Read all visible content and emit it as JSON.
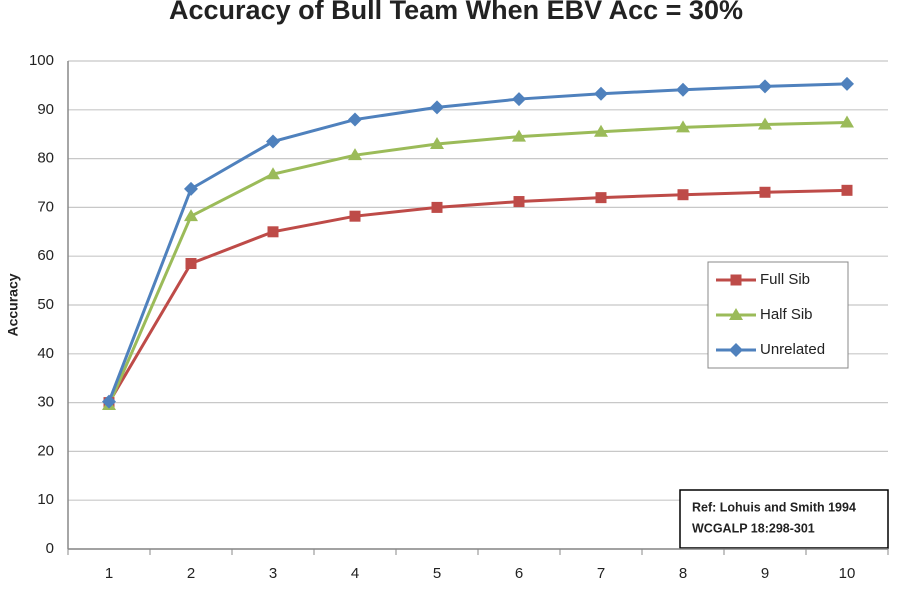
{
  "chart_data": {
    "type": "line",
    "title": "Accuracy of Bull Team When EBV Acc = 30%",
    "y_label": "Accuracy",
    "categories": [
      1,
      2,
      3,
      4,
      5,
      6,
      7,
      8,
      9,
      10
    ],
    "series": [
      {
        "name": "Full Sib",
        "color": "#be4b48",
        "marker": "square",
        "values": [
          30,
          58.5,
          65,
          68.2,
          70,
          71.2,
          72,
          72.6,
          73.1,
          73.5
        ]
      },
      {
        "name": "Half Sib",
        "color": "#9bbb59",
        "marker": "triangle",
        "values": [
          29.5,
          68.2,
          76.8,
          80.7,
          83,
          84.5,
          85.5,
          86.4,
          87,
          87.4
        ]
      },
      {
        "name": "Unrelated",
        "color": "#4f81bd",
        "marker": "diamond",
        "values": [
          30.2,
          73.8,
          83.5,
          88,
          90.5,
          92.2,
          93.3,
          94.1,
          94.8,
          95.3
        ]
      }
    ],
    "ylim": [
      0,
      100
    ],
    "yticks": [
      0,
      10,
      20,
      30,
      40,
      50,
      60,
      70,
      80,
      90,
      100
    ],
    "grid": true,
    "annotations": [
      "Ref: Lohuis and Smith 1994",
      "WCGALP 18:298-301"
    ]
  }
}
